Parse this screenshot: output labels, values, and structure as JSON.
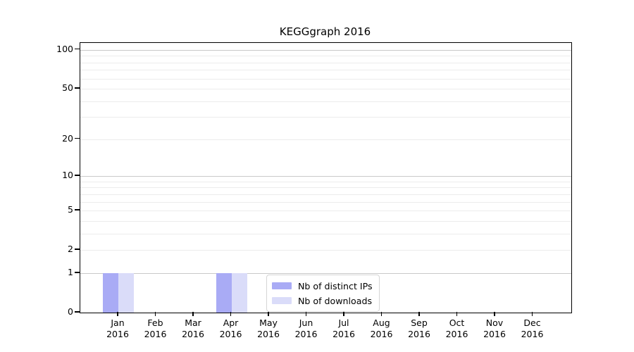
{
  "chart_data": {
    "type": "bar",
    "title": "KEGGgraph 2016",
    "categories": [
      "Jan 2016",
      "Feb 2016",
      "Mar 2016",
      "Apr 2016",
      "May 2016",
      "Jun 2016",
      "Jul 2016",
      "Aug 2016",
      "Sep 2016",
      "Oct 2016",
      "Nov 2016",
      "Dec 2016"
    ],
    "series": [
      {
        "name": "Nb of distinct IPs",
        "color": "#a9abf5",
        "values": [
          1,
          0,
          0,
          1,
          0,
          0,
          0,
          0,
          0,
          0,
          0,
          0
        ]
      },
      {
        "name": "Nb of downloads",
        "color": "#dadcf9",
        "values": [
          1,
          0,
          0,
          1,
          0,
          0,
          0,
          0,
          0,
          0,
          0,
          0
        ]
      }
    ],
    "yscale": "log1p",
    "ylim": [
      0,
      113
    ],
    "yticks_major": [
      0,
      1,
      2,
      5,
      10,
      20,
      50,
      100
    ],
    "yticks_minor": [
      3,
      4,
      6,
      7,
      8,
      9,
      30,
      40,
      60,
      70,
      80,
      90
    ],
    "decade_gridlines": [
      1,
      10,
      100
    ],
    "grid": "horizontal",
    "legend_position": "lower center",
    "axis_color": "#000000",
    "grid_major_color": "#c9c9c9",
    "grid_minor_color": "#ececec"
  }
}
